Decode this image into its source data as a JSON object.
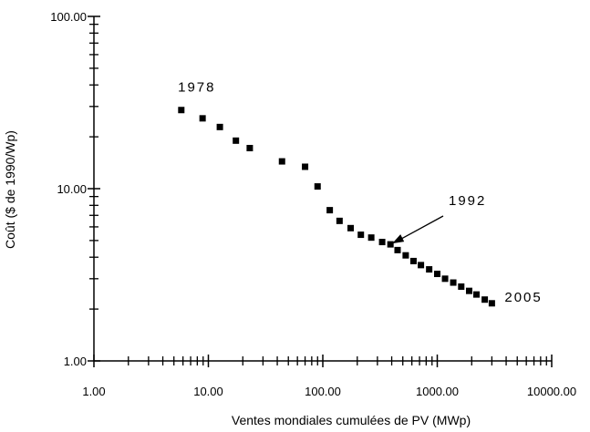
{
  "chart_data": {
    "type": "scatter",
    "title": "",
    "xlabel": "Ventes mondiales cumulées de PV (MWp)",
    "ylabel": "Coût ($ de 1990/Wp)",
    "x_scale": "log",
    "y_scale": "log",
    "xlim": [
      1,
      10000
    ],
    "ylim": [
      1,
      100
    ],
    "x_ticks": [
      "1.00",
      "10.00",
      "100.00",
      "1000.00",
      "10000.00"
    ],
    "y_ticks": [
      "1.00",
      "10.00",
      "100.00"
    ],
    "grid": false,
    "series": [
      {
        "x": [
          5.8,
          8.9,
          12.6,
          17.4,
          23,
          44,
          70,
          90,
          115,
          140,
          175,
          215,
          265,
          330,
          390,
          450,
          530,
          620,
          720,
          850,
          1000,
          1170,
          1380,
          1620,
          1900,
          2200,
          2600,
          3000
        ],
        "y": [
          28.6,
          25.6,
          22.8,
          19.0,
          17.2,
          14.4,
          13.4,
          10.3,
          7.5,
          6.5,
          5.9,
          5.4,
          5.2,
          4.9,
          4.75,
          4.4,
          4.1,
          3.8,
          3.6,
          3.4,
          3.2,
          3.0,
          2.85,
          2.7,
          2.55,
          2.43,
          2.27,
          2.16
        ]
      }
    ],
    "annotations": [
      {
        "text": "1978",
        "x": 5.8,
        "y": 28.6
      },
      {
        "text": "1992",
        "x": 390,
        "y": 4.75
      },
      {
        "text": "2005",
        "x": 3000,
        "y": 2.16
      }
    ]
  }
}
